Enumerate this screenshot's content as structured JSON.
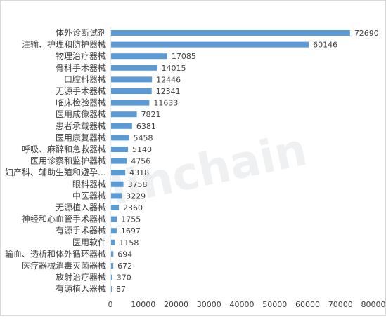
{
  "chart_data": {
    "type": "bar",
    "orientation": "horizontal",
    "categories": [
      "体外诊断试剂",
      "注输、护理和防护器械",
      "物理治疗器械",
      "骨科手术器械",
      "口腔科器械",
      "无源手术器械",
      "临床检验器械",
      "医用成像器械",
      "患者承载器械",
      "医用康复器械",
      "呼吸、麻醉和急救器械",
      "医用诊察和监护器械",
      "妇产科、辅助生殖和避孕…",
      "眼科器械",
      "中医器械",
      "无源植入器械",
      "神经和心血管手术器械",
      "有源手术器械",
      "医用软件",
      "输血、透析和体外循环器械",
      "医疗器械消毒灭菌器械",
      "放射治疗器械",
      "有源植入器械"
    ],
    "values": [
      72690,
      60146,
      17085,
      14015,
      12446,
      12341,
      11633,
      7821,
      6381,
      5458,
      5140,
      4756,
      4318,
      3758,
      3229,
      2360,
      1755,
      1697,
      1158,
      694,
      672,
      370,
      87
    ],
    "xlim": [
      0,
      80000
    ],
    "x_ticks": [
      0,
      10000,
      20000,
      30000,
      40000,
      50000,
      60000,
      70000,
      80000
    ],
    "bar_color": "#5b9bd5",
    "grid": false,
    "legend": "none",
    "data_labels": true,
    "watermark": "linchain"
  }
}
